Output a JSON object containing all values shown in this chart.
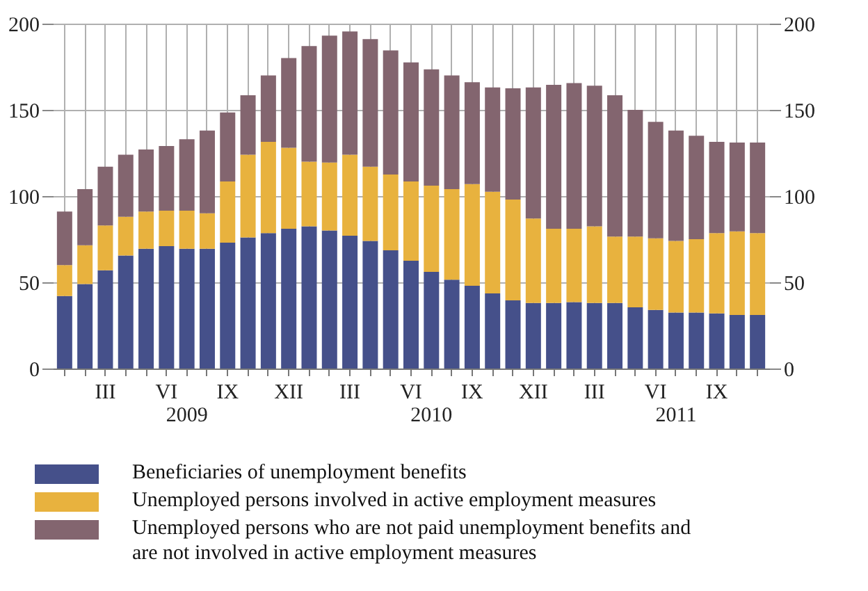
{
  "chart_data": {
    "type": "bar",
    "stacked": true,
    "categories": [
      null,
      null,
      "III",
      null,
      null,
      "VI",
      null,
      null,
      "IX",
      null,
      null,
      "XII",
      null,
      null,
      "III",
      null,
      null,
      "VI",
      null,
      null,
      "IX",
      null,
      null,
      "XII",
      null,
      null,
      "III",
      null,
      null,
      "VI",
      null,
      null,
      "IX",
      null,
      null
    ],
    "annotations": [
      "2009",
      "2010",
      "2011"
    ],
    "series": [
      {
        "name": "Beneficiaries of unemployment benefits",
        "color": "#45508a",
        "values": [
          42,
          49,
          57,
          65.5,
          69.5,
          71,
          69.5,
          69.5,
          73,
          76,
          78.5,
          81,
          82.5,
          80,
          77,
          74,
          68.5,
          62.5,
          56,
          51.5,
          48,
          43.5,
          39.5,
          38,
          38,
          38.5,
          38,
          38,
          35.5,
          34,
          32.5,
          32.5,
          32,
          31,
          31
        ]
      },
      {
        "name": "Unemployed persons involved in active employment measures",
        "color": "#e8b23e",
        "values": [
          18,
          22.5,
          26,
          22.5,
          21.5,
          20.5,
          22,
          20.5,
          35.5,
          48,
          53,
          47,
          37.5,
          39.5,
          47,
          43,
          44,
          46,
          50,
          52.5,
          59,
          59,
          58.5,
          49,
          43,
          42.5,
          44.5,
          38.5,
          41,
          41.5,
          41.5,
          42.5,
          46.5,
          48.5,
          47.5
        ]
      },
      {
        "name": "Unemployed persons who are not paid unemployment benefits and are not involved in active employment measures",
        "color": "#83656f",
        "values": [
          31,
          32.5,
          34,
          36,
          36,
          37.5,
          41.5,
          48,
          40,
          34.5,
          38.5,
          52,
          67,
          73.5,
          71.5,
          74,
          72,
          69,
          67.5,
          66,
          59,
          60.5,
          64.5,
          76,
          83.5,
          84.5,
          81.5,
          82,
          73.5,
          67.5,
          64,
          60,
          53,
          51.5,
          52.5
        ]
      }
    ],
    "ylim": [
      0,
      200
    ],
    "yticks": [
      0,
      50,
      100,
      150,
      200
    ],
    "y2lim": [
      0,
      200
    ],
    "y2ticks": [
      0,
      50,
      100,
      150,
      200
    ],
    "grid": true,
    "legend": "bottom"
  }
}
